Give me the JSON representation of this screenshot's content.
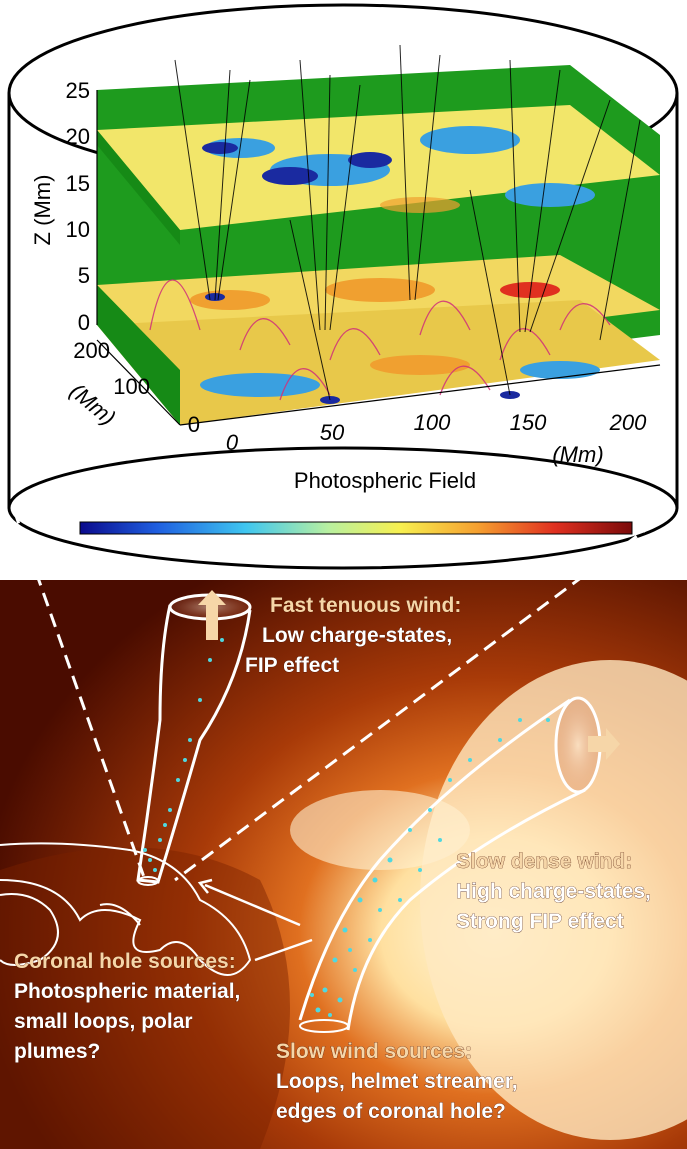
{
  "top_panel": {
    "z_axis": {
      "label": "Z (Mm)",
      "ticks": [
        "0",
        "5",
        "10",
        "15",
        "20",
        "25"
      ]
    },
    "y_axis": {
      "label": "(Mm)",
      "ticks": [
        "0",
        "100",
        "200"
      ]
    },
    "x_axis": {
      "label": "(Mm)",
      "ticks": [
        "0",
        "50",
        "100",
        "150",
        "200"
      ]
    },
    "colorbar": {
      "label": "Photospheric Field",
      "colors": [
        "#0a0a8c",
        "#1f5fe0",
        "#3fc6f0",
        "#b8f0a0",
        "#f7f050",
        "#f5a030",
        "#e03020",
        "#7a0a0a"
      ]
    },
    "colors": {
      "green": "#1e9b1e",
      "slice": "#f2e66a",
      "cool": "#3aa0e0",
      "warm": "#f0a030",
      "loop": "#d0307a"
    }
  },
  "bottom_panel": {
    "fast_wind": {
      "title": "Fast tenuous wind:",
      "lines": [
        "Low charge-states,",
        "FIP effect"
      ]
    },
    "slow_dense": {
      "title": "Slow dense wind:",
      "lines": [
        "High charge-states,",
        "Strong FIP effect"
      ]
    },
    "coronal_hole": {
      "title": "Coronal hole sources:",
      "lines": [
        "Photospheric material,",
        "small loops, polar",
        "plumes?"
      ]
    },
    "slow_sources": {
      "title": "Slow wind sources:",
      "lines": [
        "Loops, helmet streamer,",
        "edges of coronal hole?"
      ]
    },
    "colors": {
      "corona_dark": "#4a0c00",
      "corona_mid": "#a83a08",
      "corona_bright": "#ffe6b0",
      "dots": "#4fd8e0",
      "arrow": "#f6d6a8"
    }
  }
}
